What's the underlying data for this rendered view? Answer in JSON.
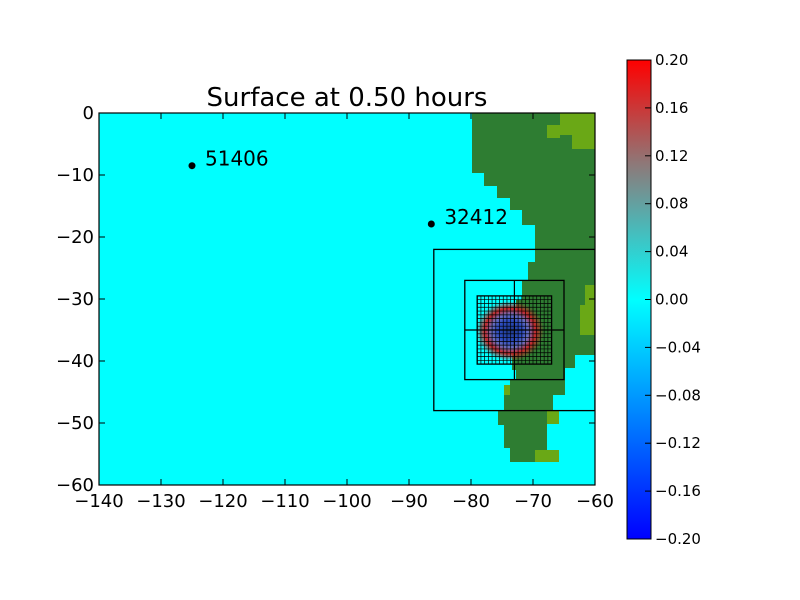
{
  "chart_data": {
    "type": "heatmap",
    "title": "Surface at 0.50 hours",
    "xlabel": "",
    "ylabel": "",
    "xlim": [
      -140,
      -60
    ],
    "ylim": [
      -60,
      0
    ],
    "x_ticks": [
      "−140",
      "−130",
      "−120",
      "−110",
      "−100",
      "−90",
      "−80",
      "−70",
      "−60"
    ],
    "y_ticks": [
      "0",
      "−10",
      "−20",
      "−30",
      "−40",
      "−50",
      "−60"
    ],
    "x_tick_values": [
      -140,
      -130,
      -120,
      -110,
      -100,
      -90,
      -80,
      -70,
      -60
    ],
    "y_tick_values": [
      0,
      -10,
      -20,
      -30,
      -40,
      -50,
      -60
    ],
    "grid": false,
    "gauges": [
      {
        "id": "51406",
        "x": -125,
        "y": -8.5
      },
      {
        "id": "32412",
        "x": -86.4,
        "y": -17.9
      }
    ],
    "refinement_boxes": [
      {
        "x": [
          -86,
          -60
        ],
        "y": [
          -48,
          -22
        ]
      },
      {
        "x": [
          -81,
          -65
        ],
        "y": [
          -43,
          -27
        ]
      },
      {
        "x": [
          -79,
          -67
        ],
        "y": [
          -40.5,
          -29.5
        ]
      }
    ],
    "colorbar": {
      "range": [
        -0.2,
        0.2
      ],
      "ticks": [
        "0.20",
        "0.16",
        "0.12",
        "0.08",
        "0.04",
        "0.00",
        "−0.04",
        "−0.08",
        "−0.12",
        "−0.16",
        "−0.20"
      ],
      "tick_values": [
        0.2,
        0.16,
        0.12,
        0.08,
        0.04,
        0.0,
        -0.04,
        -0.08,
        -0.12,
        -0.16,
        -0.2
      ],
      "colors": [
        "#0000ff",
        "#00ffff",
        "#ff0000"
      ]
    },
    "colors": {
      "ocean": "#00ffff",
      "land": "#2e7d32",
      "land_high": "#6aa816",
      "wave_high": "#c62828",
      "wave_low": "#1e3a8a"
    }
  }
}
